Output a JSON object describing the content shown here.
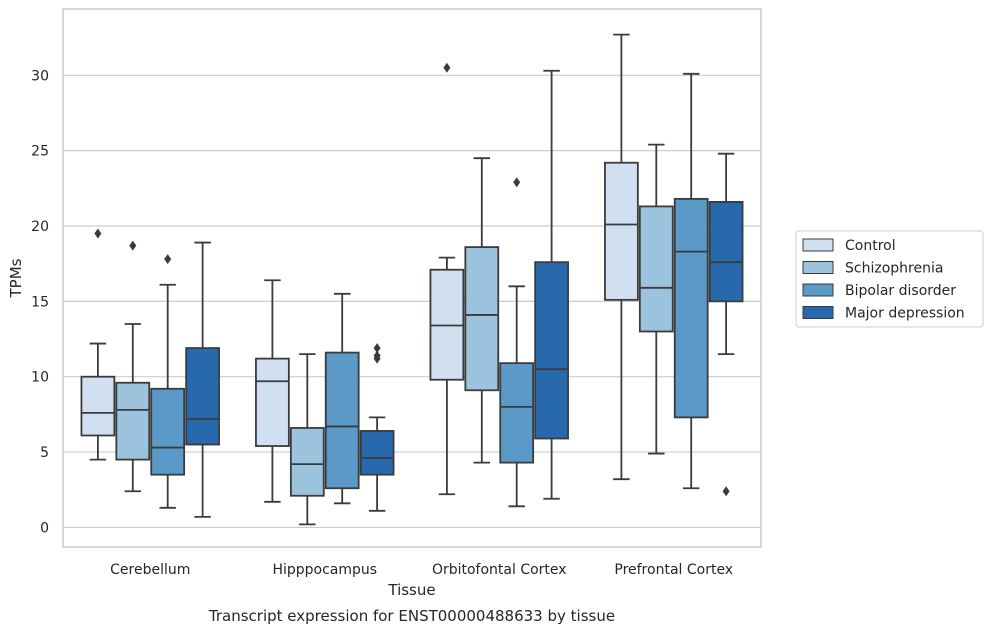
{
  "chart_data": {
    "type": "box",
    "caption": "Transcript expression for ENST00000488633 by tissue",
    "xlabel": "Tissue",
    "ylabel": "TPMs",
    "ylim": [
      -1.3,
      34.4
    ],
    "yticks": [
      0,
      5,
      10,
      15,
      20,
      25,
      30
    ],
    "grid": true,
    "legend_position": "right",
    "categories": [
      "Cerebellum",
      "Hipppocampus",
      "Orbitofontal Cortex",
      "Prefrontal Cortex"
    ],
    "series": [
      {
        "name": "Control",
        "color": "#d0e0f1",
        "boxes": [
          {
            "whisker_low": 4.5,
            "q1": 6.1,
            "median": 7.6,
            "q3": 10.0,
            "whisker_high": 12.2,
            "outliers": [
              19.5
            ]
          },
          {
            "whisker_low": 1.7,
            "q1": 5.4,
            "median": 9.7,
            "q3": 11.2,
            "whisker_high": 16.4,
            "outliers": []
          },
          {
            "whisker_low": 2.2,
            "q1": 9.8,
            "median": 13.4,
            "q3": 17.1,
            "whisker_high": 17.9,
            "outliers": [
              30.5
            ]
          },
          {
            "whisker_low": 3.2,
            "q1": 15.1,
            "median": 20.1,
            "q3": 24.2,
            "whisker_high": 32.7,
            "outliers": []
          }
        ]
      },
      {
        "name": "Schizophrenia",
        "color": "#9cc3de",
        "boxes": [
          {
            "whisker_low": 2.4,
            "q1": 4.5,
            "median": 7.8,
            "q3": 9.6,
            "whisker_high": 13.5,
            "outliers": [
              18.7
            ]
          },
          {
            "whisker_low": 0.2,
            "q1": 2.1,
            "median": 4.2,
            "q3": 6.6,
            "whisker_high": 11.5,
            "outliers": []
          },
          {
            "whisker_low": 4.3,
            "q1": 9.1,
            "median": 14.1,
            "q3": 18.6,
            "whisker_high": 24.5,
            "outliers": []
          },
          {
            "whisker_low": 4.9,
            "q1": 13.0,
            "median": 15.9,
            "q3": 21.3,
            "whisker_high": 25.4,
            "outliers": []
          }
        ]
      },
      {
        "name": "Bipolar disorder",
        "color": "#5b9ac8",
        "boxes": [
          {
            "whisker_low": 1.3,
            "q1": 3.5,
            "median": 5.3,
            "q3": 9.2,
            "whisker_high": 16.1,
            "outliers": [
              17.8
            ]
          },
          {
            "whisker_low": 1.6,
            "q1": 2.6,
            "median": 6.7,
            "q3": 11.6,
            "whisker_high": 15.5,
            "outliers": []
          },
          {
            "whisker_low": 1.4,
            "q1": 4.3,
            "median": 8.0,
            "q3": 10.9,
            "whisker_high": 16.0,
            "outliers": [
              22.9
            ]
          },
          {
            "whisker_low": 2.6,
            "q1": 7.3,
            "median": 18.3,
            "q3": 21.8,
            "whisker_high": 30.1,
            "outliers": []
          }
        ]
      },
      {
        "name": "Major depression",
        "color": "#2868ad",
        "boxes": [
          {
            "whisker_low": 0.7,
            "q1": 5.5,
            "median": 7.2,
            "q3": 11.9,
            "whisker_high": 18.9,
            "outliers": []
          },
          {
            "whisker_low": 1.1,
            "q1": 3.5,
            "median": 4.6,
            "q3": 6.4,
            "whisker_high": 7.3,
            "outliers": [
              11.2,
              11.4,
              11.9
            ]
          },
          {
            "whisker_low": 1.9,
            "q1": 5.9,
            "median": 10.5,
            "q3": 17.6,
            "whisker_high": 30.3,
            "outliers": []
          },
          {
            "whisker_low": 11.5,
            "q1": 15.0,
            "median": 17.6,
            "q3": 21.6,
            "whisker_high": 24.8,
            "outliers": [
              2.4
            ]
          }
        ]
      }
    ]
  }
}
